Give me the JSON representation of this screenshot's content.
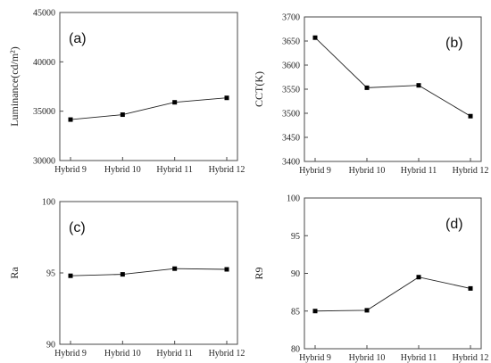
{
  "chart_data": [
    {
      "type": "line",
      "panel": "(a)",
      "ylabel": "Luminance(cd/m²)",
      "categories": [
        "Hybrid 9",
        "Hybrid 10",
        "Hybrid 11",
        "Hybrid 12"
      ],
      "values": [
        34150,
        34650,
        35900,
        36350
      ],
      "ylim": [
        30000,
        45000
      ],
      "yticks": [
        "30000",
        "35000",
        "40000",
        "45000"
      ],
      "ytick_values": [
        30000,
        35000,
        40000,
        45000
      ],
      "label_position": "top-left"
    },
    {
      "type": "line",
      "panel": "(b)",
      "ylabel": "CCT(K)",
      "categories": [
        "Hybrid 9",
        "Hybrid 10",
        "Hybrid 11",
        "Hybrid 12"
      ],
      "values": [
        3657,
        3553,
        3558,
        3494
      ],
      "ylim": [
        3400,
        3700
      ],
      "yticks": [
        "3400",
        "3450",
        "3500",
        "3550",
        "3600",
        "3650",
        "3700"
      ],
      "ytick_values": [
        3400,
        3450,
        3500,
        3550,
        3600,
        3650,
        3700
      ],
      "label_position": "top-right"
    },
    {
      "type": "line",
      "panel": "(c)",
      "ylabel": "Ra",
      "categories": [
        "Hybrid 9",
        "Hybrid 10",
        "Hybrid 11",
        "Hybrid 12"
      ],
      "values": [
        94.8,
        94.9,
        95.3,
        95.25
      ],
      "ylim": [
        90,
        100
      ],
      "yticks": [
        "90",
        "95",
        "100"
      ],
      "ytick_values": [
        90,
        95,
        100
      ],
      "label_position": "top-left"
    },
    {
      "type": "line",
      "panel": "(d)",
      "ylabel": "R9",
      "categories": [
        "Hybrid 9",
        "Hybrid 10",
        "Hybrid 11",
        "Hybrid 12"
      ],
      "values": [
        85.0,
        85.1,
        89.5,
        88.0
      ],
      "ylim": [
        80,
        100
      ],
      "yticks": [
        "80",
        "85",
        "90",
        "95",
        "100"
      ],
      "ytick_values": [
        80,
        85,
        90,
        95,
        100
      ],
      "label_position": "top-right"
    }
  ]
}
